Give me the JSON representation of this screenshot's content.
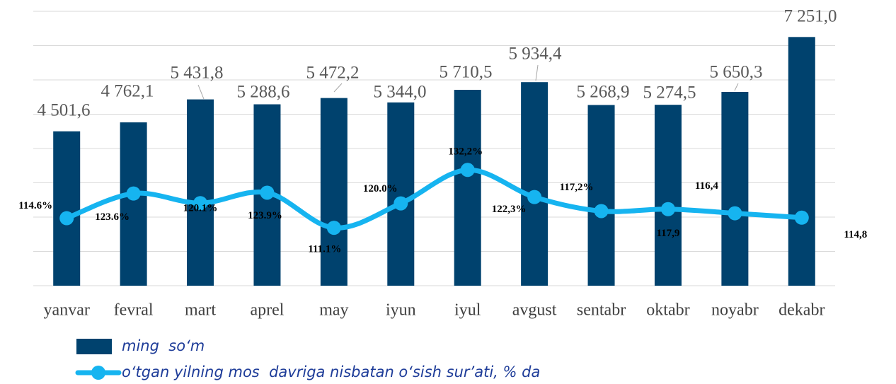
{
  "chart_data": {
    "type": "bar",
    "categories": [
      "yanvar",
      "fevral",
      "mart",
      "aprel",
      "may",
      "iyun",
      "iyul",
      "avgust",
      "sentabr",
      "oktabr",
      "noyabr",
      "dekabr"
    ],
    "series": [
      {
        "name": "ming  so‘m",
        "type": "bar",
        "color": "#00426e",
        "values": [
          4501.6,
          4762.1,
          5431.8,
          5288.6,
          5472.2,
          5344.0,
          5710.5,
          5934.4,
          5268.9,
          5274.5,
          5650.3,
          7251.0
        ],
        "value_labels": [
          "4 501,6",
          "4 762,1",
          "5 431,8",
          "5 288,6",
          "5 472,2",
          "5 344,0",
          "5 710,5",
          "5 934,4",
          "5 268,9",
          "5 274,5",
          "5 650,3",
          "7 251,0"
        ]
      },
      {
        "name": "o‘tgan yilning mos  davriga nisbatan o‘sish sur’ati, % da",
        "type": "line",
        "axis": "y2",
        "color": "#16b4f0",
        "values": [
          114.6,
          123.6,
          120.1,
          123.9,
          111.1,
          120.0,
          132.2,
          122.3,
          117.2,
          117.9,
          116.4,
          114.8
        ],
        "value_labels": [
          "114.6%",
          "123.6%",
          "120.1%",
          "123.9%",
          "111.1%",
          "120.0%",
          "132,2%",
          "122,3%",
          "117,2%",
          "117,9",
          "116,4",
          "114,8"
        ]
      }
    ],
    "ylim": [
      0,
      8000
    ],
    "yticks": [
      0,
      1000,
      2000,
      3000,
      4000,
      5000,
      6000,
      7000,
      8000
    ],
    "y2lim": [
      90,
      190
    ],
    "grid": true,
    "legend": "bottom"
  }
}
